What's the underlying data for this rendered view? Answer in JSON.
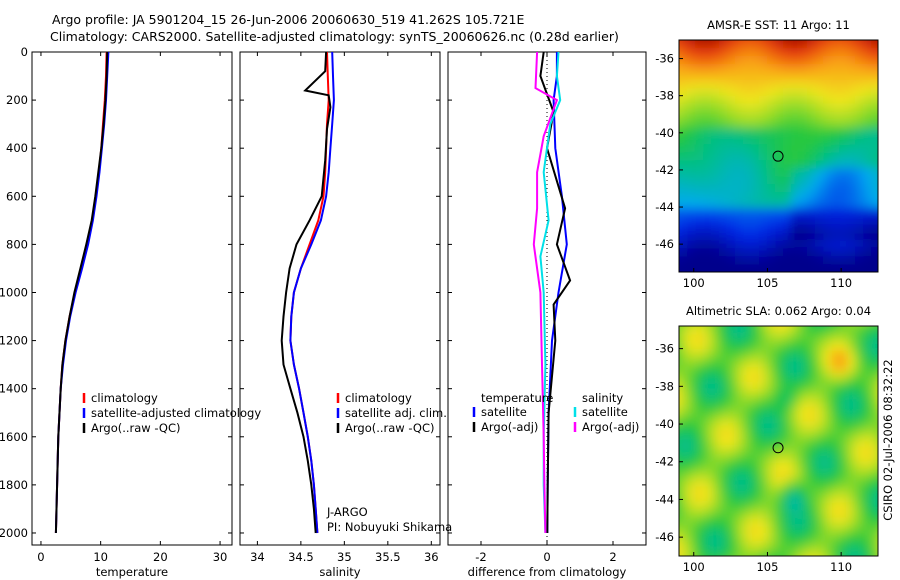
{
  "header": {
    "line1": "Argo profile: JA 5901204_15 26-Jun-2006 20060630_519 41.262S 105.721E",
    "line2": "Climatology: CARS2000. Satellite-adjusted climatology: synTS_20060626.nc (0.28d earlier)"
  },
  "colors": {
    "climatology": "#ff0000",
    "satellite": "#0000ff",
    "argo": "#000000",
    "sal_satellite": "#00e0e8",
    "sal_argo": "#ff00ff"
  },
  "chart_data": [
    {
      "type": "line",
      "xlabel": "temperature",
      "xticks": [
        0,
        10,
        20,
        30
      ],
      "xlim": [
        -1.5,
        32
      ],
      "ylim": [
        2050,
        0
      ],
      "yticks": [
        0,
        200,
        400,
        600,
        800,
        1000,
        1200,
        1400,
        1600,
        1800,
        2000
      ],
      "legend": [
        "climatology",
        "satellite-adjusted climatology",
        "Argo(..raw -QC)"
      ],
      "series": [
        {
          "name": "climatology",
          "color": "#ff0000",
          "points": [
            [
              11.0,
              0
            ],
            [
              10.9,
              100
            ],
            [
              10.7,
              200
            ],
            [
              10.4,
              300
            ],
            [
              10.1,
              400
            ],
            [
              9.7,
              500
            ],
            [
              9.2,
              600
            ],
            [
              8.6,
              700
            ],
            [
              7.8,
              800
            ],
            [
              6.8,
              900
            ],
            [
              5.7,
              1000
            ],
            [
              4.8,
              1100
            ],
            [
              4.1,
              1200
            ],
            [
              3.6,
              1300
            ],
            [
              3.3,
              1400
            ],
            [
              3.1,
              1500
            ],
            [
              2.9,
              1600
            ],
            [
              2.8,
              1700
            ],
            [
              2.7,
              1800
            ],
            [
              2.6,
              1900
            ],
            [
              2.5,
              2000
            ]
          ]
        },
        {
          "name": "satellite-adjusted climatology",
          "color": "#0000ff",
          "points": [
            [
              11.3,
              0
            ],
            [
              11.1,
              100
            ],
            [
              10.9,
              200
            ],
            [
              10.6,
              300
            ],
            [
              10.2,
              400
            ],
            [
              9.8,
              500
            ],
            [
              9.3,
              600
            ],
            [
              8.7,
              700
            ],
            [
              7.9,
              800
            ],
            [
              6.9,
              900
            ],
            [
              5.8,
              1000
            ],
            [
              4.9,
              1100
            ],
            [
              4.2,
              1200
            ],
            [
              3.7,
              1300
            ],
            [
              3.3,
              1400
            ],
            [
              3.1,
              1500
            ],
            [
              2.9,
              1600
            ],
            [
              2.8,
              1700
            ],
            [
              2.7,
              1800
            ],
            [
              2.6,
              1900
            ],
            [
              2.5,
              2000
            ]
          ]
        },
        {
          "name": "Argo(..raw -QC)",
          "color": "#000000",
          "points": [
            [
              11.1,
              0
            ],
            [
              11.0,
              100
            ],
            [
              10.8,
              200
            ],
            [
              10.5,
              300
            ],
            [
              10.1,
              400
            ],
            [
              9.6,
              500
            ],
            [
              9.1,
              600
            ],
            [
              8.5,
              700
            ],
            [
              7.6,
              800
            ],
            [
              6.6,
              900
            ],
            [
              5.6,
              1000
            ],
            [
              4.8,
              1100
            ],
            [
              4.1,
              1200
            ],
            [
              3.6,
              1300
            ],
            [
              3.3,
              1400
            ],
            [
              3.1,
              1500
            ],
            [
              2.9,
              1600
            ],
            [
              2.8,
              1700
            ],
            [
              2.7,
              1800
            ],
            [
              2.6,
              1900
            ],
            [
              2.5,
              2000
            ]
          ]
        }
      ]
    },
    {
      "type": "line",
      "xlabel": "salinity",
      "xticks": [
        34,
        34.5,
        35,
        35.5,
        36
      ],
      "xlim": [
        33.8,
        36.1
      ],
      "ylim": [
        2050,
        0
      ],
      "legend": [
        "climatology",
        "satellite adj. clim.",
        "Argo(..raw -QC)"
      ],
      "annotations": [
        "J-ARGO",
        "PI: Nobuyuki Shikama"
      ],
      "series": [
        {
          "name": "climatology",
          "color": "#ff0000",
          "points": [
            [
              34.8,
              0
            ],
            [
              34.81,
              100
            ],
            [
              34.82,
              200
            ],
            [
              34.8,
              300
            ],
            [
              34.79,
              400
            ],
            [
              34.78,
              500
            ],
            [
              34.76,
              600
            ],
            [
              34.7,
              700
            ],
            [
              34.6,
              800
            ],
            [
              34.5,
              900
            ],
            [
              34.42,
              1000
            ],
            [
              34.39,
              1100
            ],
            [
              34.38,
              1200
            ],
            [
              34.42,
              1300
            ],
            [
              34.48,
              1400
            ],
            [
              34.53,
              1500
            ],
            [
              34.58,
              1600
            ],
            [
              34.62,
              1700
            ],
            [
              34.65,
              1800
            ],
            [
              34.67,
              1900
            ],
            [
              34.69,
              2000
            ]
          ]
        },
        {
          "name": "satellite adj. clim.",
          "color": "#0000ff",
          "points": [
            [
              34.86,
              0
            ],
            [
              34.87,
              100
            ],
            [
              34.88,
              200
            ],
            [
              34.86,
              300
            ],
            [
              34.84,
              400
            ],
            [
              34.82,
              500
            ],
            [
              34.79,
              600
            ],
            [
              34.73,
              700
            ],
            [
              34.62,
              800
            ],
            [
              34.5,
              900
            ],
            [
              34.42,
              1000
            ],
            [
              34.39,
              1100
            ],
            [
              34.38,
              1200
            ],
            [
              34.42,
              1300
            ],
            [
              34.48,
              1400
            ],
            [
              34.53,
              1500
            ],
            [
              34.58,
              1600
            ],
            [
              34.62,
              1700
            ],
            [
              34.65,
              1800
            ],
            [
              34.67,
              1900
            ],
            [
              34.69,
              2000
            ]
          ]
        },
        {
          "name": "Argo(..raw -QC)",
          "color": "#000000",
          "points": [
            [
              34.79,
              0
            ],
            [
              34.78,
              80
            ],
            [
              34.55,
              160
            ],
            [
              34.82,
              180
            ],
            [
              34.84,
              230
            ],
            [
              34.8,
              320
            ],
            [
              34.78,
              450
            ],
            [
              34.74,
              600
            ],
            [
              34.6,
              700
            ],
            [
              34.45,
              800
            ],
            [
              34.37,
              900
            ],
            [
              34.33,
              1000
            ],
            [
              34.3,
              1100
            ],
            [
              34.28,
              1200
            ],
            [
              34.3,
              1300
            ],
            [
              34.38,
              1400
            ],
            [
              34.46,
              1500
            ],
            [
              34.53,
              1600
            ],
            [
              34.58,
              1700
            ],
            [
              34.62,
              1800
            ],
            [
              34.65,
              1900
            ],
            [
              34.67,
              2000
            ]
          ]
        }
      ]
    },
    {
      "type": "line",
      "xlabel": "difference from climatology",
      "xticks": [
        -2,
        0,
        2
      ],
      "xlim": [
        -3,
        3
      ],
      "ylim": [
        2050,
        0
      ],
      "legend_headers": [
        "temperature",
        "salinity"
      ],
      "legend": [
        "satellite",
        "Argo(-adj)",
        "satellite",
        "Argo(-adj)"
      ],
      "series": [
        {
          "name": "temperature satellite",
          "color": "#0000ff",
          "points": [
            [
              0.3,
              0
            ],
            [
              0.3,
              100
            ],
            [
              0.2,
              200
            ],
            [
              0.25,
              400
            ],
            [
              0.45,
              600
            ],
            [
              0.6,
              800
            ],
            [
              0.35,
              1000
            ],
            [
              0.15,
              1200
            ],
            [
              0.05,
              1500
            ],
            [
              0.02,
              1800
            ],
            [
              0.01,
              2000
            ]
          ]
        },
        {
          "name": "temperature Argo(-adj)",
          "color": "#000000",
          "points": [
            [
              -0.1,
              0
            ],
            [
              -0.2,
              100
            ],
            [
              0.2,
              250
            ],
            [
              0.0,
              400
            ],
            [
              0.55,
              650
            ],
            [
              0.3,
              800
            ],
            [
              0.7,
              950
            ],
            [
              0.2,
              1050
            ],
            [
              0.25,
              1200
            ],
            [
              0.05,
              1500
            ],
            [
              0.02,
              1800
            ],
            [
              0.01,
              2000
            ]
          ]
        },
        {
          "name": "salinity satellite",
          "color": "#00e0e8",
          "points": [
            [
              0.35,
              0
            ],
            [
              0.3,
              100
            ],
            [
              0.4,
              200
            ],
            [
              0.1,
              300
            ],
            [
              -0.1,
              500
            ],
            [
              0.05,
              700
            ],
            [
              -0.2,
              850
            ],
            [
              -0.1,
              1000
            ],
            [
              -0.05,
              1300
            ],
            [
              -0.1,
              1600
            ],
            [
              -0.1,
              1800
            ],
            [
              -0.05,
              2000
            ]
          ]
        },
        {
          "name": "salinity Argo(-adj)",
          "color": "#ff00ff",
          "points": [
            [
              -0.3,
              0
            ],
            [
              -0.35,
              150
            ],
            [
              0.3,
              200
            ],
            [
              -0.1,
              350
            ],
            [
              -0.3,
              500
            ],
            [
              -0.3,
              650
            ],
            [
              -0.4,
              800
            ],
            [
              -0.2,
              1000
            ],
            [
              -0.15,
              1300
            ],
            [
              -0.1,
              1600
            ],
            [
              -0.08,
              1800
            ],
            [
              -0.05,
              2000
            ]
          ]
        }
      ]
    },
    {
      "type": "heatmap",
      "title": "AMSR-E SST: 11 Argo: 11",
      "xticks": [
        100,
        105,
        110
      ],
      "yticks": [
        -36,
        -38,
        -40,
        -42,
        -44,
        -46
      ],
      "xlim": [
        99,
        112.5
      ],
      "ylim": [
        -47.5,
        -35
      ],
      "marker": [
        105.72,
        -41.26
      ]
    },
    {
      "type": "heatmap",
      "title": "Altimetric SLA: 0.062 Argo: 0.04",
      "xticks": [
        100,
        105,
        110
      ],
      "yticks": [
        -36,
        -38,
        -40,
        -42,
        -44,
        -46
      ],
      "xlim": [
        99,
        112.5
      ],
      "ylim": [
        -47,
        -34.8
      ],
      "marker": [
        105.72,
        -41.26
      ]
    }
  ],
  "footer": {
    "stamp": "CSIRO 02-Jul-2006 08:32:22"
  }
}
